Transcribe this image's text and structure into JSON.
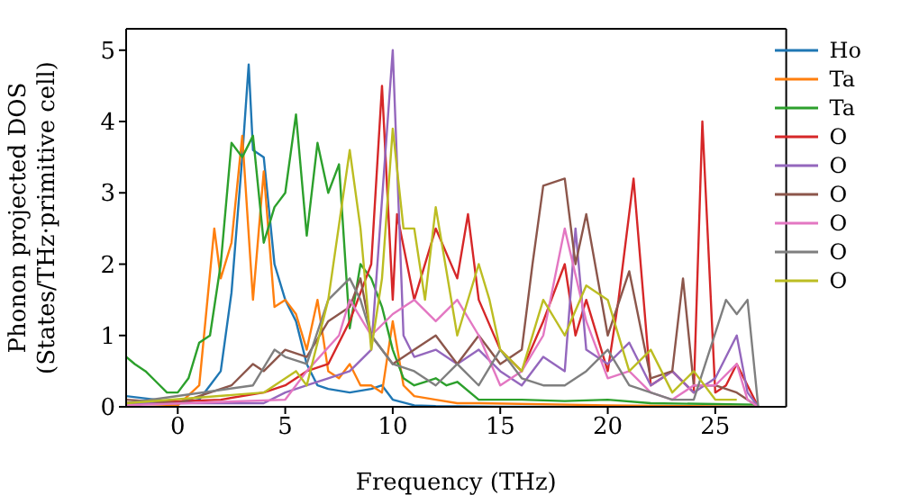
{
  "chart_data": {
    "type": "line",
    "xlabel": "Frequency (THz)",
    "ylabel": "Phonon projected DOS\n(States/THz·primitive cell)",
    "xlim": [
      -2.4,
      28.3
    ],
    "ylim": [
      0,
      5.3
    ],
    "xticks": [
      0,
      5,
      10,
      15,
      20,
      25
    ],
    "yticks": [
      0,
      1,
      2,
      3,
      4,
      5
    ],
    "grid": false,
    "legend": "top right",
    "marker": "none",
    "line_style": "solid",
    "series": [
      {
        "name": "Ho",
        "color": "#1f77b4",
        "x": [
          -2.4,
          -1,
          0,
          1,
          1.5,
          2,
          2.5,
          3,
          3.3,
          3.5,
          4,
          4.5,
          5,
          5.5,
          6,
          6.5,
          7,
          8,
          9,
          9.5,
          10,
          11,
          12,
          15,
          20
        ],
        "values": [
          0.15,
          0.1,
          0.05,
          0.1,
          0.3,
          0.5,
          1.6,
          3.5,
          4.8,
          3.6,
          3.5,
          2,
          1.5,
          1.2,
          0.6,
          0.3,
          0.25,
          0.2,
          0.25,
          0.3,
          0.1,
          0.02,
          0.01,
          0,
          0
        ]
      },
      {
        "name": "Ta",
        "color": "#ff7f0e",
        "x": [
          -2.4,
          0,
          1,
          1.7,
          2,
          2.5,
          3,
          3.5,
          4,
          4.5,
          5,
          5.5,
          6,
          6.5,
          7,
          7.5,
          8,
          8.5,
          9,
          9.5,
          10,
          10.5,
          11,
          12,
          13,
          14,
          20,
          27
        ],
        "values": [
          0.05,
          0.02,
          0.3,
          2.5,
          1.8,
          2.3,
          3.8,
          1.5,
          3.3,
          1.4,
          1.5,
          1.3,
          0.8,
          1.5,
          0.5,
          0.4,
          0.6,
          0.3,
          0.3,
          0.2,
          1.2,
          0.3,
          0.15,
          0.1,
          0.05,
          0.05,
          0.02,
          0
        ]
      },
      {
        "name": "Ta",
        "color": "#2ca02c",
        "x": [
          -2.4,
          -2,
          -1.5,
          -1,
          -0.5,
          0,
          0.5,
          1,
          1.5,
          2,
          2.5,
          3,
          3.5,
          4,
          4.5,
          5,
          5.5,
          6,
          6.5,
          7,
          7.5,
          8,
          8.5,
          9,
          9.5,
          10,
          10.5,
          11,
          11.5,
          12,
          12.5,
          13,
          14,
          16,
          18,
          20,
          22,
          27
        ],
        "values": [
          0.7,
          0.6,
          0.5,
          0.35,
          0.2,
          0.2,
          0.4,
          0.9,
          1,
          2,
          3.7,
          3.5,
          3.8,
          2.3,
          2.8,
          3,
          4.1,
          2.4,
          3.7,
          3,
          3.4,
          1.1,
          2,
          1.8,
          1.4,
          0.8,
          0.4,
          0.3,
          0.35,
          0.4,
          0.3,
          0.35,
          0.1,
          0.1,
          0.08,
          0.1,
          0.05,
          0.03
        ]
      },
      {
        "name": "O",
        "color": "#d62728",
        "x": [
          -2.4,
          2,
          4,
          5,
          6,
          7,
          8,
          9,
          9.5,
          10,
          10.2,
          11,
          12,
          13,
          13.5,
          14,
          15,
          16,
          17,
          18,
          18.5,
          19,
          20,
          20.5,
          21.2,
          22,
          23,
          24,
          24.4,
          25,
          25.5,
          26,
          26.5,
          27
        ],
        "values": [
          0.05,
          0.1,
          0.2,
          0.3,
          0.5,
          0.6,
          1.2,
          2,
          4.5,
          1.5,
          2.7,
          1.5,
          2.5,
          1.8,
          2.7,
          1.5,
          0.8,
          0.5,
          1.2,
          2,
          1,
          1.5,
          0.5,
          1.5,
          3.2,
          0.3,
          0.5,
          0.2,
          4,
          0.2,
          0.3,
          0.6,
          0.3,
          0
        ]
      },
      {
        "name": "O",
        "color": "#9467bd",
        "x": [
          -2.4,
          4,
          5,
          6,
          7,
          8,
          9,
          10,
          10.5,
          11,
          12,
          13,
          14,
          15,
          16,
          17,
          18,
          18.5,
          19,
          20,
          21,
          22,
          23,
          24,
          25,
          26,
          26.5,
          27
        ],
        "values": [
          0.05,
          0.05,
          0.2,
          0.3,
          0.4,
          0.5,
          0.8,
          5,
          1,
          0.7,
          0.8,
          0.6,
          0.8,
          0.5,
          0.3,
          0.7,
          0.5,
          2.5,
          0.8,
          0.6,
          0.9,
          0.3,
          0.5,
          0.2,
          0.4,
          1,
          0.2,
          0
        ]
      },
      {
        "name": "O",
        "color": "#8c564b",
        "x": [
          -2.4,
          0,
          1.5,
          2.5,
          3.5,
          4,
          5,
          6,
          7,
          8,
          8.5,
          9,
          10,
          11,
          12,
          13,
          14,
          15,
          16,
          16.5,
          17,
          18,
          18.5,
          19,
          20,
          21,
          22,
          23,
          23.5,
          24,
          25,
          26,
          27
        ],
        "values": [
          0.1,
          0.05,
          0.2,
          0.3,
          0.6,
          0.5,
          0.8,
          0.7,
          1.2,
          1.4,
          1.8,
          1,
          0.6,
          0.8,
          1,
          0.6,
          1,
          0.6,
          0.8,
          2,
          3.1,
          3.2,
          2,
          2.7,
          1,
          1.9,
          0.4,
          0.5,
          1.8,
          0.3,
          0.3,
          0.2,
          0
        ]
      },
      {
        "name": "O",
        "color": "#e377c2",
        "x": [
          -2.4,
          5,
          6,
          7.5,
          8,
          9,
          10,
          11,
          12,
          13,
          14,
          15,
          16,
          17,
          18,
          19,
          20,
          21,
          22,
          23,
          24,
          25,
          26,
          26.5,
          27
        ],
        "values": [
          0.02,
          0.1,
          0.5,
          1,
          1.5,
          1,
          1.3,
          1.5,
          1.2,
          1.5,
          1,
          0.3,
          0.5,
          1,
          2.5,
          1.2,
          0.4,
          0.5,
          0.2,
          0.1,
          0.3,
          0.3,
          0.6,
          0.1,
          0
        ]
      },
      {
        "name": "O",
        "color": "#7f7f7f",
        "x": [
          -2.4,
          3.5,
          4.5,
          5,
          6,
          7,
          8,
          8.5,
          9,
          10,
          11,
          12,
          13,
          14,
          15,
          16,
          17,
          18,
          19,
          20,
          21,
          22,
          23,
          24,
          25.5,
          26,
          26.5,
          27
        ],
        "values": [
          0.05,
          0.3,
          0.8,
          0.7,
          0.6,
          1.5,
          1.8,
          1.5,
          1,
          0.6,
          0.5,
          0.3,
          0.6,
          0.3,
          0.8,
          0.4,
          0.3,
          0.3,
          0.5,
          0.8,
          0.3,
          0.2,
          0.1,
          0.1,
          1.5,
          1.3,
          1.5,
          0
        ]
      },
      {
        "name": "O",
        "color": "#bcbd22",
        "x": [
          -2.4,
          4,
          5.5,
          6,
          7,
          8,
          8.5,
          9,
          9.5,
          10,
          10.5,
          11,
          11.5,
          12,
          13,
          14,
          14.5,
          15,
          16,
          17,
          18,
          19,
          20,
          21,
          22,
          23,
          24,
          25,
          26
        ],
        "values": [
          0.05,
          0.2,
          0.5,
          0.3,
          1.5,
          3.6,
          2.5,
          0.8,
          1.8,
          3.9,
          2.5,
          2.5,
          1.5,
          2.8,
          1,
          2,
          1.5,
          0.8,
          0.5,
          1.5,
          1,
          1.7,
          1.5,
          0.5,
          0.8,
          0.2,
          0.5,
          0.1,
          0.1
        ]
      }
    ]
  }
}
